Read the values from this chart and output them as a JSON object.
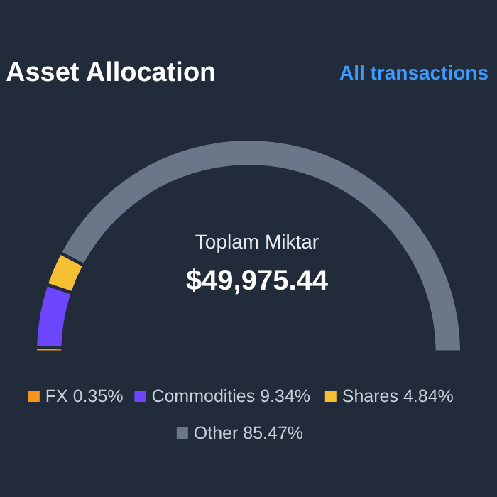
{
  "chart_data": {
    "type": "donut",
    "title": "Asset Allocation",
    "categories": [
      "FX",
      "Commodities",
      "Shares",
      "Other"
    ],
    "values": [
      0.35,
      9.34,
      4.84,
      85.47
    ],
    "colors": [
      "#f7931e",
      "#6c47ff",
      "#f5c033",
      "#6b7789"
    ],
    "value_labels": [
      "0.35%",
      "9.34%",
      "4.84%",
      "85.47%"
    ],
    "legend": "bottom",
    "annotations": [
      "All transactions",
      "Toplam Miktar",
      "$49,975.44"
    ]
  }
}
